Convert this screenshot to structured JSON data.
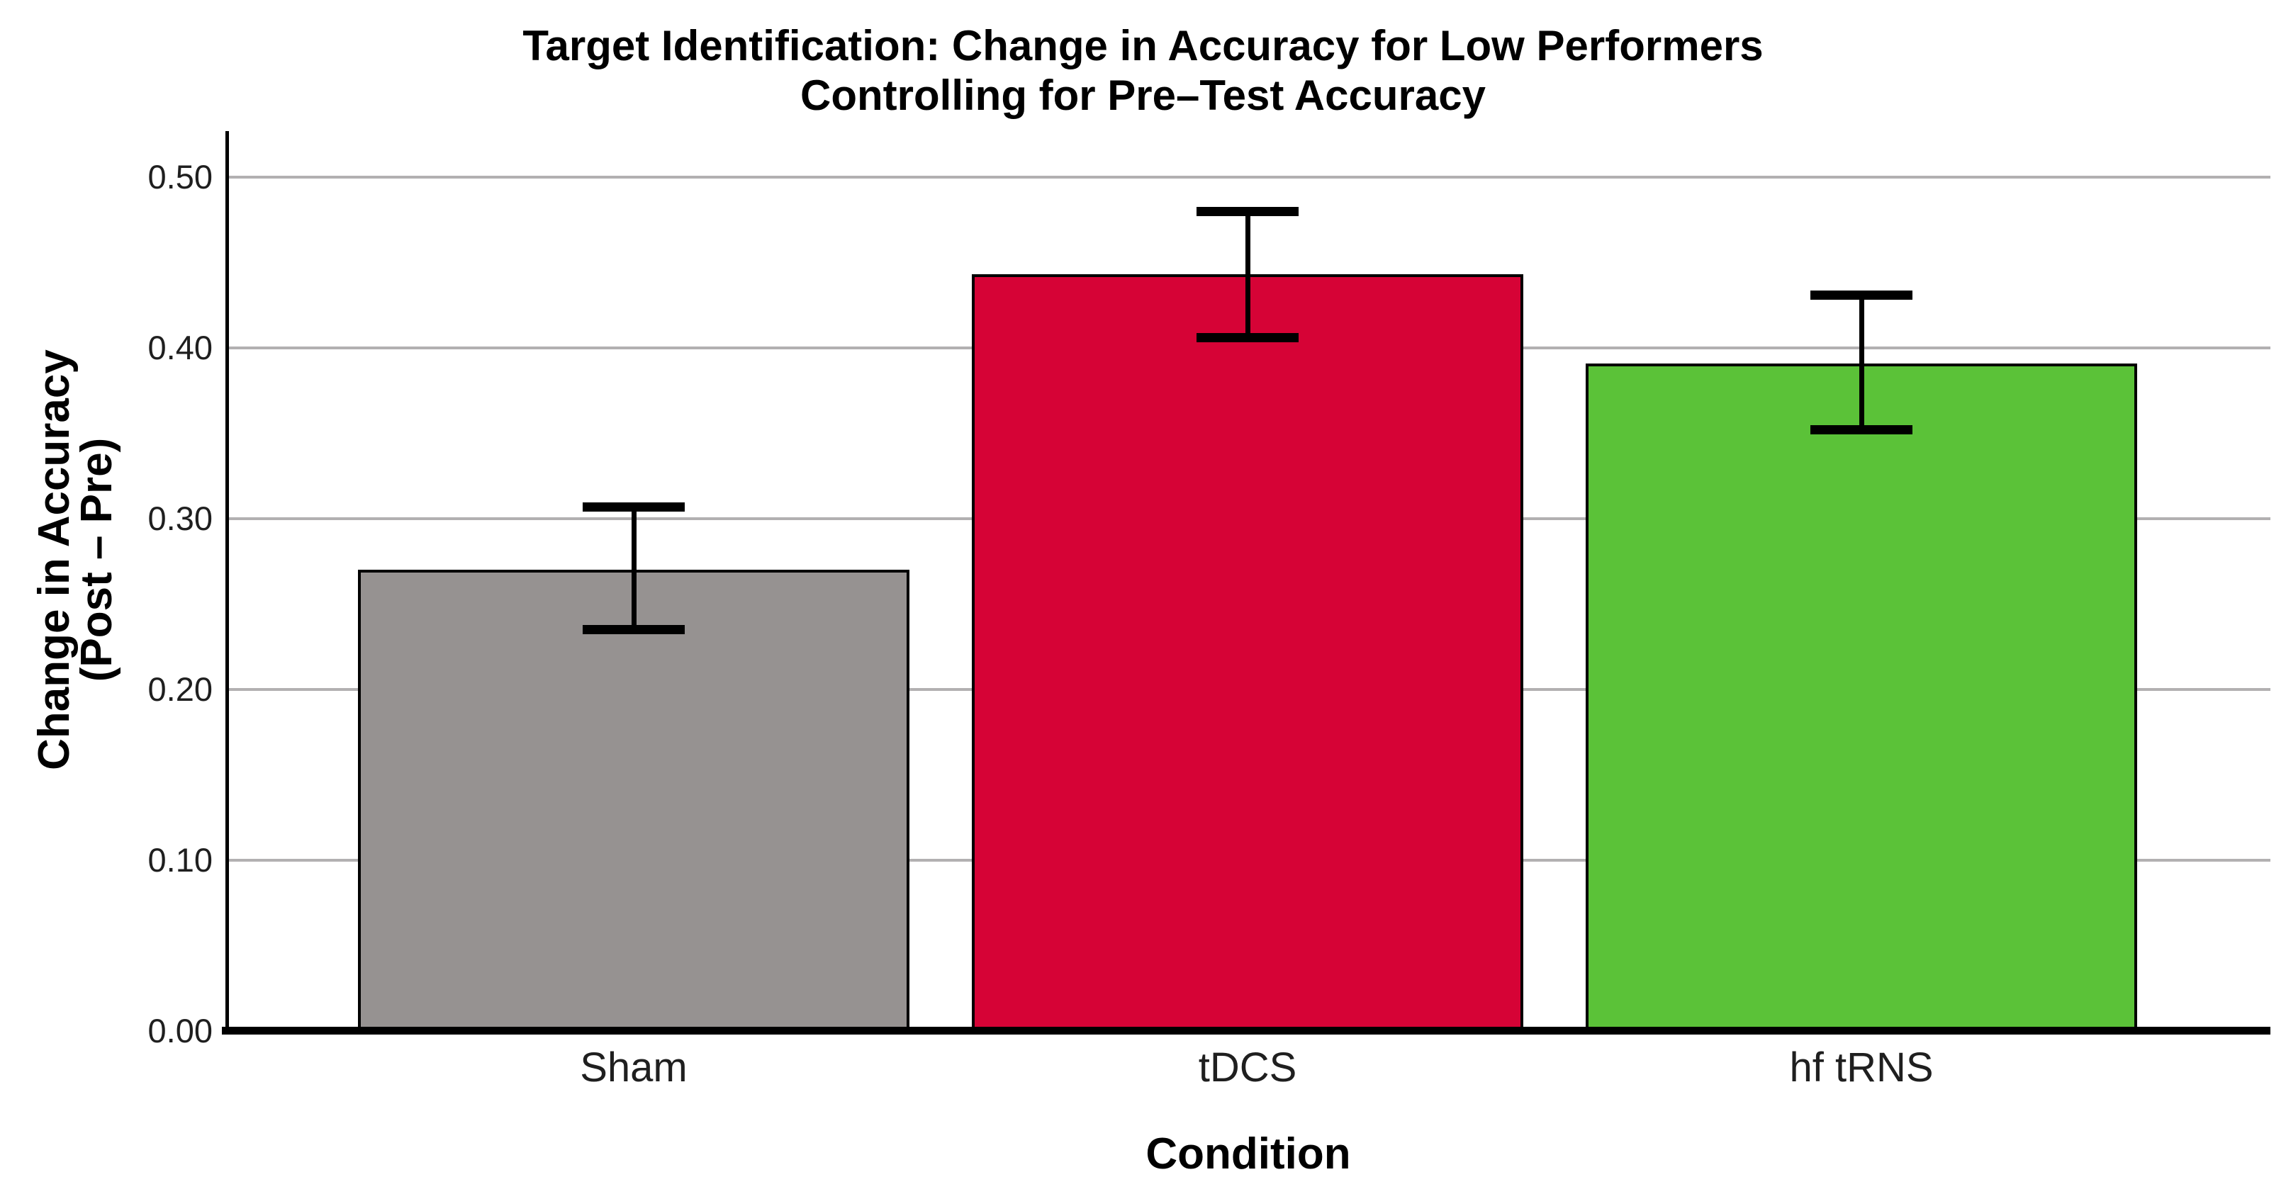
{
  "title": {
    "line1": "Target Identification: Change in Accuracy for Low Performers",
    "line2": "Controlling for Pre–Test Accuracy"
  },
  "y_axis": {
    "title_line1": "Change in Accuracy",
    "title_line2": "(Post – Pre)",
    "tick_labels": [
      "0.00",
      "0.10",
      "0.20",
      "0.30",
      "0.40",
      "0.50"
    ],
    "tick_values": [
      0,
      0.1,
      0.2,
      0.3,
      0.4,
      0.5
    ]
  },
  "x_axis": {
    "title": "Condition"
  },
  "chart_data": {
    "type": "bar",
    "title": "Target Identification: Change in Accuracy for Low Performers — Controlling for Pre–Test Accuracy",
    "xlabel": "Condition",
    "ylabel": "Change in Accuracy (Post – Pre)",
    "categories": [
      "Sham",
      "tDCS",
      "hf tRNS"
    ],
    "values": [
      0.27,
      0.443,
      0.391
    ],
    "error_low": [
      0.235,
      0.406,
      0.352
    ],
    "error_high": [
      0.307,
      0.48,
      0.431
    ],
    "bar_colors": [
      "#969291",
      "#D60336",
      "#5BC238"
    ],
    "bar_edge_color": "#000000",
    "grid_color": "#b2b0b1",
    "axis_color": "#000000",
    "tick_label_color": "#1f1f1f",
    "ylim": [
      0,
      0.527
    ],
    "grid": true,
    "legend": false
  }
}
